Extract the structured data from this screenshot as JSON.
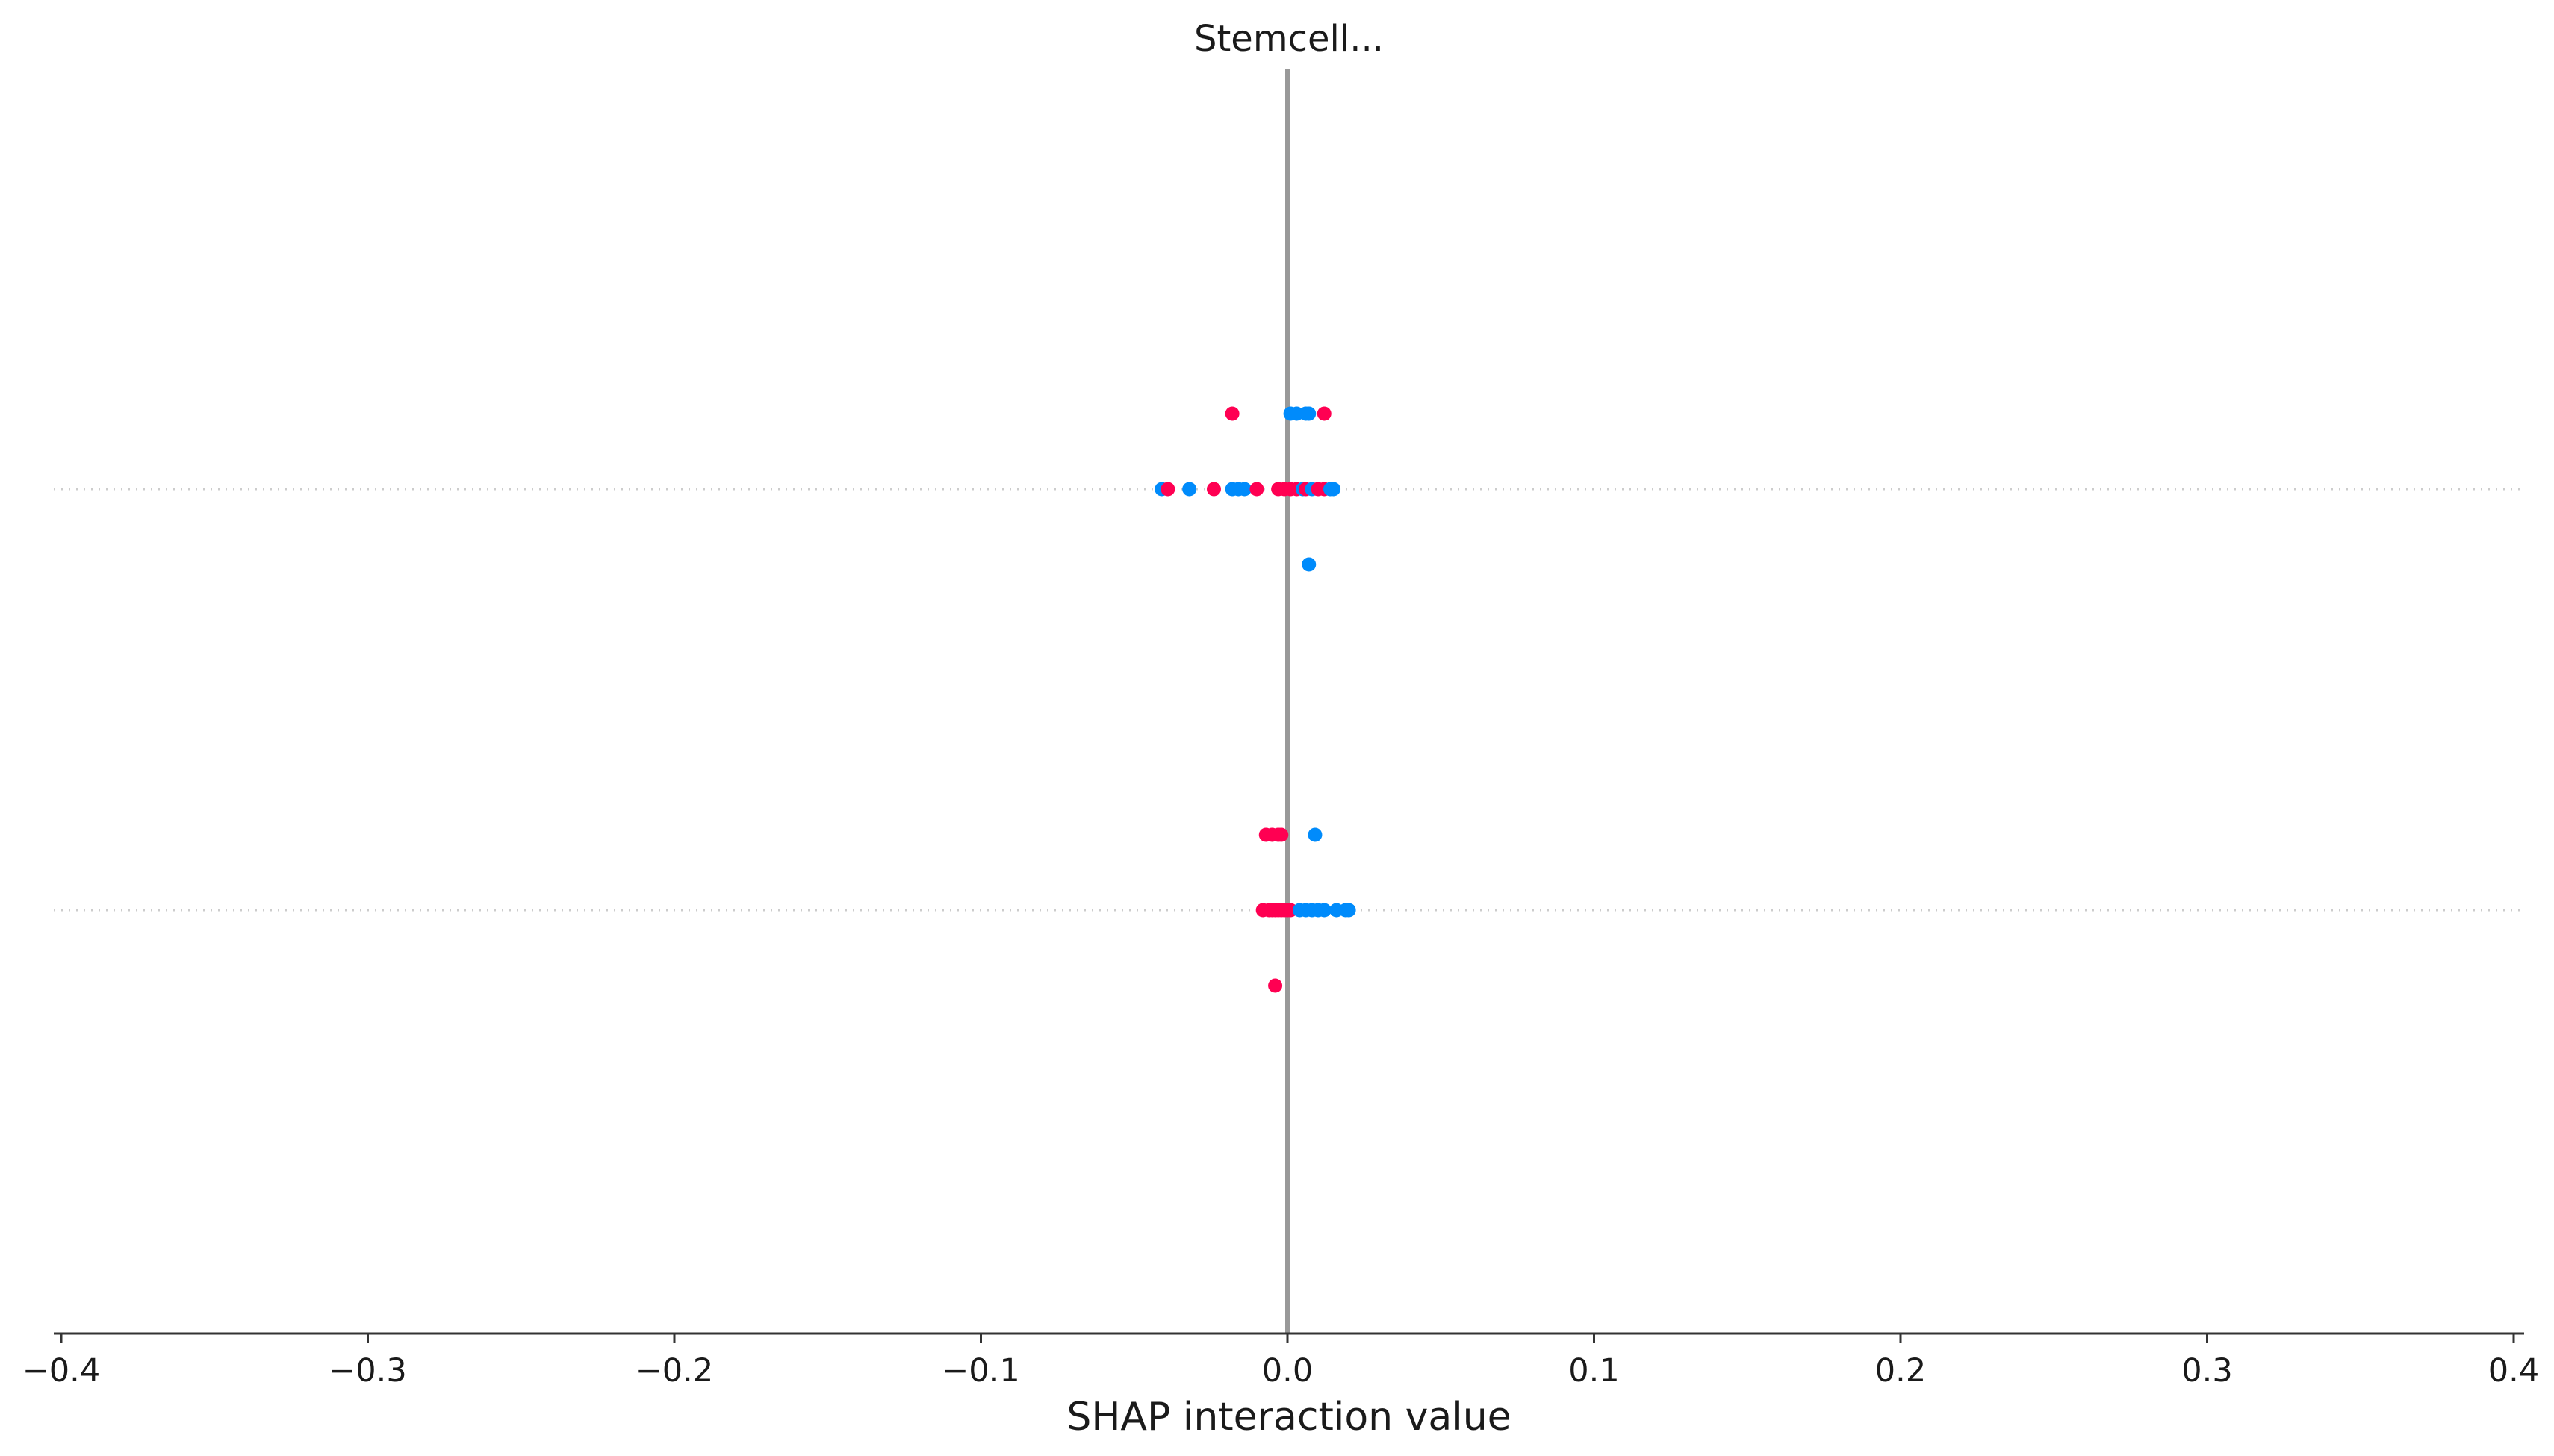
{
  "chart_data": {
    "type": "scatter",
    "title": "Stemcell...",
    "xlabel": "SHAP interaction value",
    "ylabel": "",
    "xlim": [
      -0.4,
      0.4
    ],
    "xticks": [
      -0.4,
      -0.3,
      -0.2,
      -0.1,
      0.0,
      0.1,
      0.2,
      0.3,
      0.4
    ],
    "xtick_labels": [
      "−0.4",
      "−0.3",
      "−0.2",
      "−0.1",
      "0.0",
      "0.1",
      "0.2",
      "0.3",
      "0.4"
    ],
    "grid": false,
    "legend": "none",
    "zero_line": true,
    "rows": [
      {
        "row": 1,
        "points": [
          {
            "x": -0.018,
            "offset": -1,
            "color": "#ff0052"
          },
          {
            "x": 0.001,
            "offset": -1,
            "color": "#008bfb"
          },
          {
            "x": 0.003,
            "offset": -1,
            "color": "#008bfb"
          },
          {
            "x": 0.006,
            "offset": -1,
            "color": "#008bfb"
          },
          {
            "x": 0.007,
            "offset": -1,
            "color": "#008bfb"
          },
          {
            "x": 0.012,
            "offset": -1,
            "color": "#ff0052"
          },
          {
            "x": -0.041,
            "offset": 0,
            "color": "#008bfb"
          },
          {
            "x": -0.039,
            "offset": 0,
            "color": "#ff0052"
          },
          {
            "x": -0.032,
            "offset": 0,
            "color": "#008bfb"
          },
          {
            "x": -0.024,
            "offset": 0,
            "color": "#ff0052"
          },
          {
            "x": -0.018,
            "offset": 0,
            "color": "#008bfb"
          },
          {
            "x": -0.016,
            "offset": 0,
            "color": "#008bfb"
          },
          {
            "x": -0.014,
            "offset": 0,
            "color": "#008bfb"
          },
          {
            "x": -0.01,
            "offset": 0,
            "color": "#ff0052"
          },
          {
            "x": -0.003,
            "offset": 0,
            "color": "#ff0052"
          },
          {
            "x": -0.001,
            "offset": 0,
            "color": "#ff0052"
          },
          {
            "x": 0.001,
            "offset": 0,
            "color": "#ff0052"
          },
          {
            "x": 0.003,
            "offset": 0,
            "color": "#ff0052"
          },
          {
            "x": 0.005,
            "offset": 0,
            "color": "#008bfb"
          },
          {
            "x": 0.006,
            "offset": 0,
            "color": "#ff0052"
          },
          {
            "x": 0.008,
            "offset": 0,
            "color": "#008bfb"
          },
          {
            "x": 0.01,
            "offset": 0,
            "color": "#ff0052"
          },
          {
            "x": 0.012,
            "offset": 0,
            "color": "#ff0052"
          },
          {
            "x": 0.014,
            "offset": 0,
            "color": "#008bfb"
          },
          {
            "x": 0.015,
            "offset": 0,
            "color": "#008bfb"
          },
          {
            "x": 0.007,
            "offset": 1,
            "color": "#008bfb"
          }
        ]
      },
      {
        "row": 2,
        "points": [
          {
            "x": -0.007,
            "offset": -1,
            "color": "#ff0052"
          },
          {
            "x": -0.005,
            "offset": -1,
            "color": "#ff0052"
          },
          {
            "x": -0.003,
            "offset": -1,
            "color": "#ff0052"
          },
          {
            "x": -0.002,
            "offset": -1,
            "color": "#ff0052"
          },
          {
            "x": 0.009,
            "offset": -1,
            "color": "#008bfb"
          },
          {
            "x": -0.008,
            "offset": 0,
            "color": "#ff0052"
          },
          {
            "x": -0.006,
            "offset": 0,
            "color": "#ff0052"
          },
          {
            "x": -0.005,
            "offset": 0,
            "color": "#ff0052"
          },
          {
            "x": -0.004,
            "offset": 0,
            "color": "#ff0052"
          },
          {
            "x": -0.003,
            "offset": 0,
            "color": "#ff0052"
          },
          {
            "x": -0.002,
            "offset": 0,
            "color": "#ff0052"
          },
          {
            "x": -0.001,
            "offset": 0,
            "color": "#ff0052"
          },
          {
            "x": 0.0,
            "offset": 0,
            "color": "#ff0052"
          },
          {
            "x": 0.001,
            "offset": 0,
            "color": "#ff0052"
          },
          {
            "x": 0.004,
            "offset": 0,
            "color": "#008bfb"
          },
          {
            "x": 0.006,
            "offset": 0,
            "color": "#008bfb"
          },
          {
            "x": 0.008,
            "offset": 0,
            "color": "#008bfb"
          },
          {
            "x": 0.01,
            "offset": 0,
            "color": "#008bfb"
          },
          {
            "x": 0.012,
            "offset": 0,
            "color": "#008bfb"
          },
          {
            "x": 0.016,
            "offset": 0,
            "color": "#008bfb"
          },
          {
            "x": 0.019,
            "offset": 0,
            "color": "#008bfb"
          },
          {
            "x": 0.02,
            "offset": 0,
            "color": "#008bfb"
          },
          {
            "x": -0.004,
            "offset": 1,
            "color": "#ff0052"
          }
        ]
      }
    ],
    "colors": {
      "high_feature_value": "#ff0052",
      "low_feature_value": "#008bfb",
      "zero_line": "#999999",
      "row_guide": "#cccccc",
      "axis": "#333333"
    }
  }
}
